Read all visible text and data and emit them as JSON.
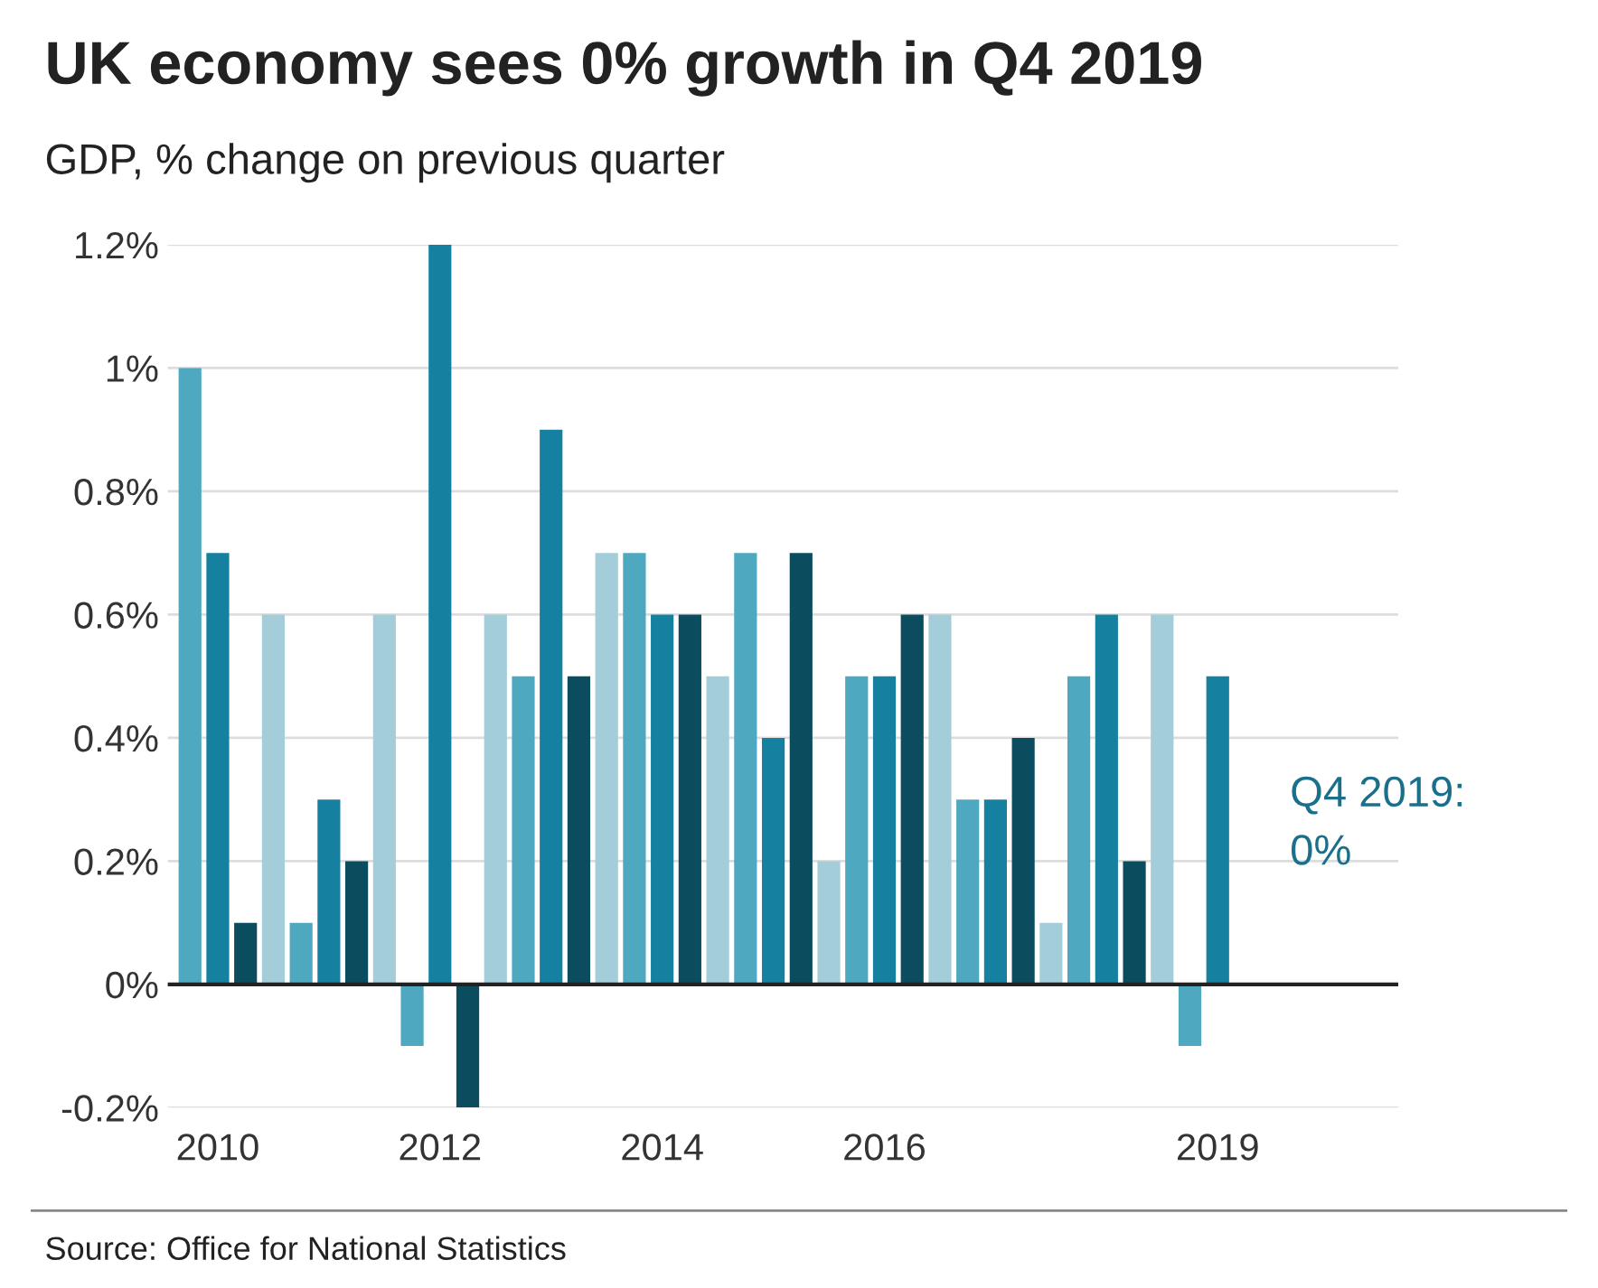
{
  "chart_data": {
    "type": "bar",
    "title": "UK economy sees 0% growth in Q4 2019",
    "subtitle": "GDP, % change on previous quarter",
    "categories": [
      null,
      "2010",
      null,
      null,
      null,
      null,
      null,
      null,
      null,
      "2012",
      null,
      null,
      null,
      null,
      null,
      null,
      null,
      "2014",
      null,
      null,
      null,
      null,
      null,
      null,
      null,
      "2016",
      null,
      null,
      null,
      null,
      null,
      null,
      null,
      null,
      null,
      null,
      null,
      "2019",
      null
    ],
    "values": [
      1.0,
      0.7,
      0.1,
      0.6,
      0.1,
      0.3,
      0.2,
      0.6,
      -0.1,
      1.2,
      -0.2,
      0.6,
      0.5,
      0.9,
      0.5,
      0.7,
      0.7,
      0.6,
      0.6,
      0.5,
      0.7,
      0.4,
      0.7,
      0.2,
      0.5,
      0.5,
      0.6,
      0.6,
      0.3,
      0.3,
      0.4,
      0.1,
      0.5,
      0.6,
      0.2,
      0.6,
      -0.1,
      0.5,
      0
    ],
    "colors": [
      "#4ea8bf",
      "#1580a0",
      "#0b4c5f",
      "#a3cdd9",
      "#4ea8bf",
      "#1580a0",
      "#0b4c5f",
      "#a3cdd9",
      "#4ea8bf",
      "#1580a0",
      "#0b4c5f",
      "#a3cdd9",
      "#4ea8bf",
      "#1580a0",
      "#0b4c5f",
      "#a3cdd9",
      "#4ea8bf",
      "#1580a0",
      "#0b4c5f",
      "#a3cdd9",
      "#4ea8bf",
      "#1580a0",
      "#0b4c5f",
      "#a3cdd9",
      "#4ea8bf",
      "#1580a0",
      "#0b4c5f",
      "#a3cdd9",
      "#4ea8bf",
      "#1580a0",
      "#0b4c5f",
      "#a3cdd9",
      "#4ea8bf",
      "#1580a0",
      "#0b4c5f",
      "#a3cdd9",
      "#4ea8bf",
      "#1580a0",
      "#0b4c5f"
    ],
    "ylim": [
      -0.2,
      1.2
    ],
    "yticks": [
      {
        "value": -0.2,
        "label": "-0.2%"
      },
      {
        "value": 0,
        "label": "0%"
      },
      {
        "value": 0.2,
        "label": "0.2%"
      },
      {
        "value": 0.4,
        "label": "0.4%"
      },
      {
        "value": 0.6,
        "label": "0.6%"
      },
      {
        "value": 0.8,
        "label": "0.8%"
      },
      {
        "value": 1,
        "label": "1%"
      },
      {
        "value": 1.2,
        "label": "1.2%"
      }
    ],
    "ref_lines": [
      {
        "axis": "y",
        "value": 0,
        "label": null,
        "color": "#222222"
      }
    ],
    "grid": "y",
    "legend": false,
    "annotations": [
      "Q4 2019:\n0%",
      "Source: Office for National Statistics"
    ]
  }
}
